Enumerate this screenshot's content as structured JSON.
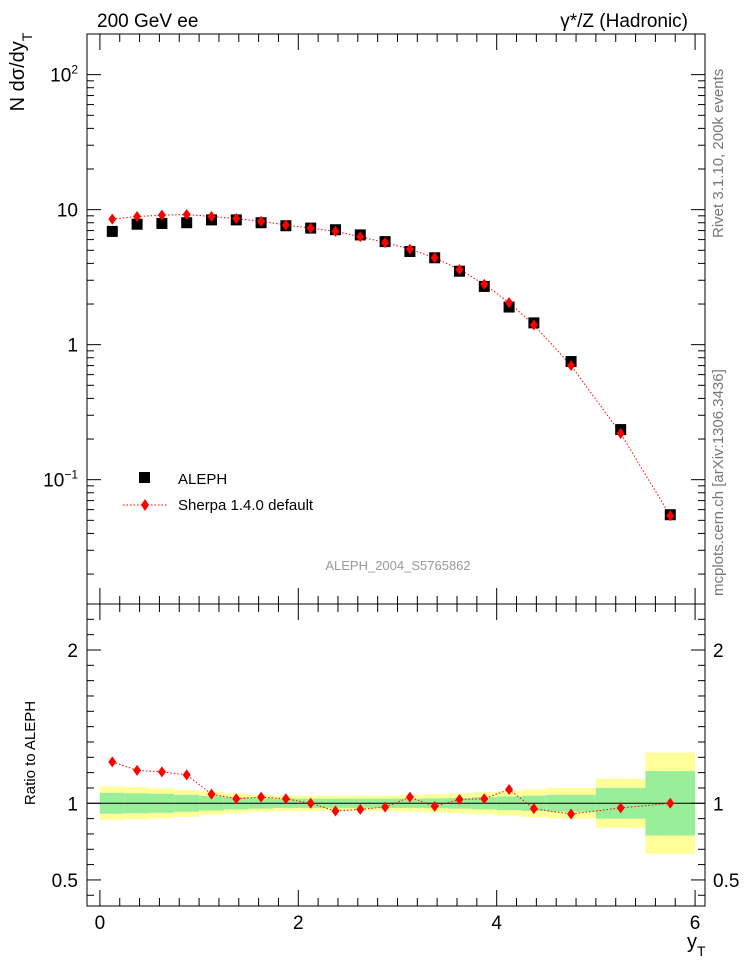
{
  "header": {
    "left": "200 GeV ee",
    "right": "γ*/Z (Hadronic)"
  },
  "side_texts": {
    "rivet": "Rivet 3.1.10,  200k events",
    "mcplots": "mcplots.cern.ch [arXiv:1306.3436]"
  },
  "analysis_label": "ALEPH_2004_S5765862",
  "colors": {
    "data": "#000000",
    "mc": "#ff0000",
    "band_inner": "#99ee99",
    "band_outer": "#ffff99"
  },
  "chart_data": [
    {
      "type": "scatter",
      "panel": "main",
      "ylabel": "N dσ/dy_T",
      "yscale": "log",
      "ylim": [
        0.012,
        200
      ],
      "xlim": [
        -0.13,
        6.1
      ],
      "y_tick_labels": [
        "10^-1",
        "1",
        "10",
        "10^2"
      ],
      "legend_position": "bottom-left",
      "series": [
        {
          "name": "ALEPH",
          "marker": "square",
          "x": [
            0.125,
            0.375,
            0.625,
            0.875,
            1.125,
            1.375,
            1.625,
            1.875,
            2.125,
            2.375,
            2.625,
            2.875,
            3.125,
            3.375,
            3.625,
            3.875,
            4.125,
            4.375,
            4.75,
            5.25,
            5.75
          ],
          "y": [
            6.9,
            7.8,
            7.9,
            8.0,
            8.4,
            8.4,
            8.0,
            7.6,
            7.3,
            7.1,
            6.5,
            5.8,
            4.9,
            4.4,
            3.5,
            2.7,
            1.9,
            1.45,
            0.75,
            0.235,
            0.055
          ]
        },
        {
          "name": "Sherpa 1.4.0 default",
          "marker": "diamond",
          "x": [
            0.125,
            0.375,
            0.625,
            0.875,
            1.125,
            1.375,
            1.625,
            1.875,
            2.125,
            2.375,
            2.625,
            2.875,
            3.125,
            3.375,
            3.625,
            3.875,
            4.125,
            4.375,
            4.75,
            5.25,
            5.75
          ],
          "y": [
            8.5,
            8.9,
            9.1,
            9.2,
            8.9,
            8.6,
            8.2,
            7.7,
            7.3,
            6.9,
            6.3,
            5.7,
            5.1,
            4.4,
            3.6,
            2.8,
            2.05,
            1.4,
            0.7,
            0.22,
            0.054
          ]
        }
      ]
    },
    {
      "type": "scatter",
      "panel": "ratio",
      "xlabel": "y_T",
      "ylabel": "Ratio to ALEPH",
      "xlim": [
        -0.13,
        6.1
      ],
      "ylim": [
        0.33,
        2.3
      ],
      "x_tick_labels": [
        "0",
        "2",
        "4",
        "6"
      ],
      "y_tick_labels": [
        "0.5",
        "1",
        "2"
      ],
      "bin_edges": [
        0,
        0.25,
        0.5,
        0.75,
        1.0,
        1.25,
        1.5,
        1.75,
        2.0,
        2.25,
        2.5,
        2.75,
        3.0,
        3.25,
        3.5,
        3.75,
        4.0,
        4.25,
        4.5,
        5.0,
        5.5,
        6.0
      ],
      "band_inner": [
        0.068,
        0.065,
        0.062,
        0.055,
        0.047,
        0.04,
        0.035,
        0.03,
        0.03,
        0.03,
        0.03,
        0.03,
        0.03,
        0.032,
        0.035,
        0.04,
        0.045,
        0.05,
        0.055,
        0.1,
        0.21
      ],
      "band_outer": [
        0.11,
        0.105,
        0.098,
        0.088,
        0.075,
        0.065,
        0.055,
        0.05,
        0.05,
        0.05,
        0.05,
        0.05,
        0.055,
        0.06,
        0.065,
        0.072,
        0.08,
        0.09,
        0.1,
        0.16,
        0.33
      ],
      "series": [
        {
          "name": "Sherpa 1.4.0 default",
          "x": [
            0.125,
            0.375,
            0.625,
            0.875,
            1.125,
            1.375,
            1.625,
            1.875,
            2.125,
            2.375,
            2.625,
            2.875,
            3.125,
            3.375,
            3.625,
            3.875,
            4.125,
            4.375,
            4.75,
            5.25,
            5.75
          ],
          "y": [
            1.27,
            1.215,
            1.205,
            1.185,
            1.06,
            1.03,
            1.04,
            1.03,
            1.0,
            0.95,
            0.96,
            0.975,
            1.04,
            0.98,
            1.025,
            1.03,
            1.09,
            0.965,
            0.93,
            0.97,
            1.0
          ]
        }
      ]
    }
  ]
}
